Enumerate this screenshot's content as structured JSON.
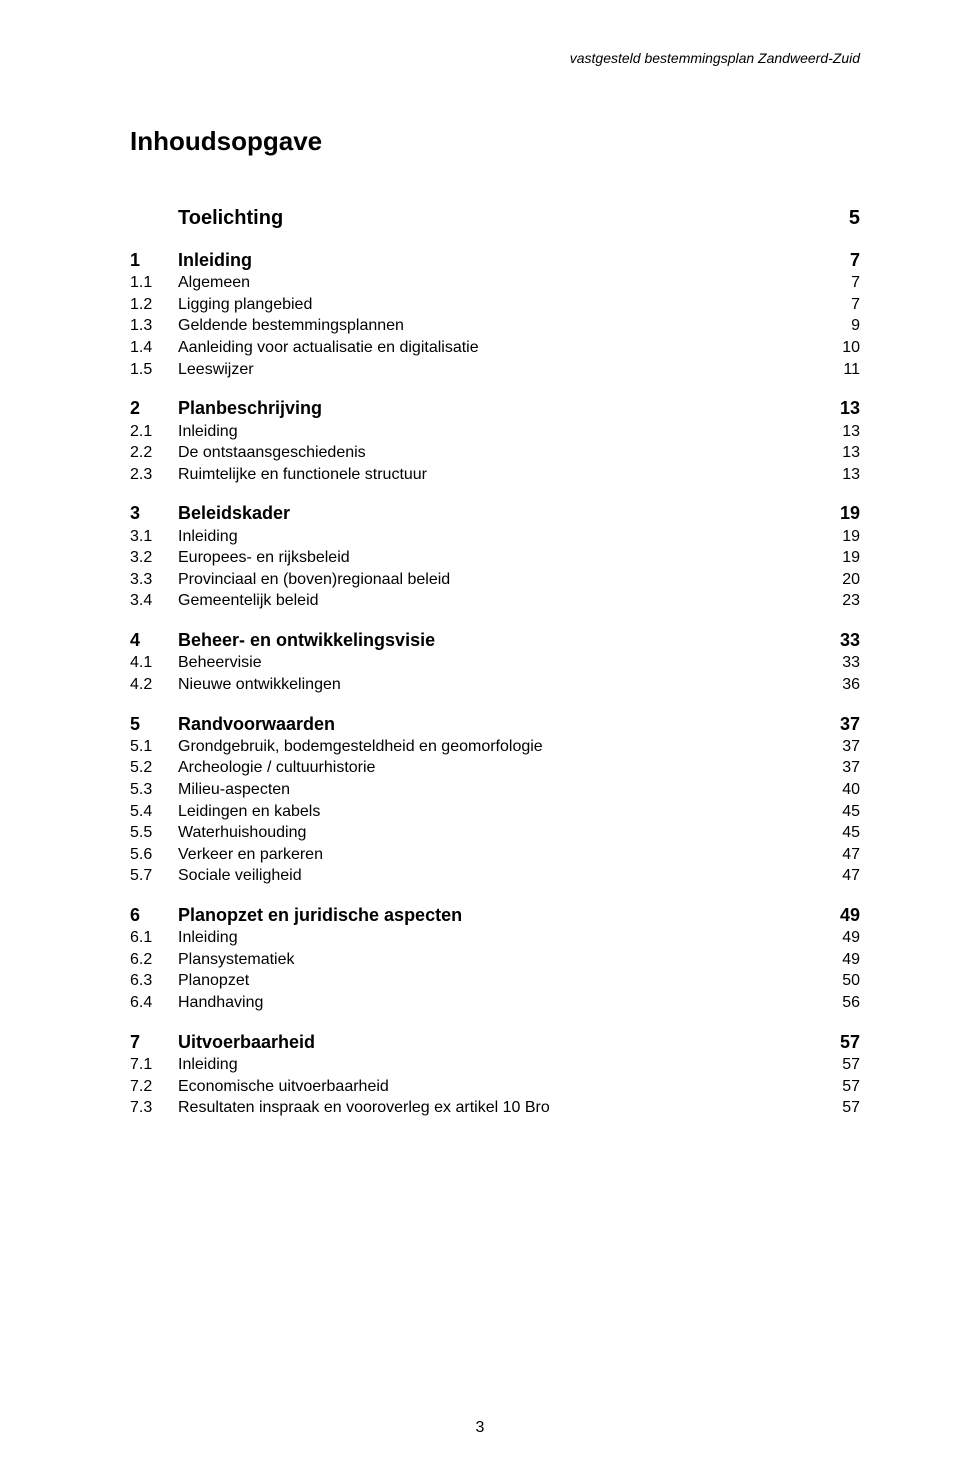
{
  "running_head": "vastgesteld bestemmingsplan Zandweerd-Zuid",
  "doc_title": "Inhoudsopgave",
  "page_number": "3",
  "toc": [
    {
      "level": 0,
      "num": "",
      "title": "Toelichting",
      "page": "5"
    },
    {
      "spacer": true
    },
    {
      "level": 1,
      "num": "1",
      "title": "Inleiding",
      "page": "7"
    },
    {
      "level": 2,
      "num": "1.1",
      "title": "Algemeen",
      "page": "7"
    },
    {
      "level": 2,
      "num": "1.2",
      "title": "Ligging plangebied",
      "page": "7"
    },
    {
      "level": 2,
      "num": "1.3",
      "title": "Geldende bestemmingsplannen",
      "page": "9"
    },
    {
      "level": 2,
      "num": "1.4",
      "title": "Aanleiding voor actualisatie en digitalisatie",
      "page": "10"
    },
    {
      "level": 2,
      "num": "1.5",
      "title": "Leeswijzer",
      "page": "11"
    },
    {
      "spacer": true
    },
    {
      "level": 1,
      "num": "2",
      "title": "Planbeschrijving",
      "page": "13"
    },
    {
      "level": 2,
      "num": "2.1",
      "title": "Inleiding",
      "page": "13"
    },
    {
      "level": 2,
      "num": "2.2",
      "title": "De ontstaansgeschiedenis",
      "page": "13"
    },
    {
      "level": 2,
      "num": "2.3",
      "title": "Ruimtelijke en functionele structuur",
      "page": "13"
    },
    {
      "spacer": true
    },
    {
      "level": 1,
      "num": "3",
      "title": "Beleidskader",
      "page": "19"
    },
    {
      "level": 2,
      "num": "3.1",
      "title": "Inleiding",
      "page": "19"
    },
    {
      "level": 2,
      "num": "3.2",
      "title": "Europees- en rijksbeleid",
      "page": "19"
    },
    {
      "level": 2,
      "num": "3.3",
      "title": "Provinciaal en (boven)regionaal beleid",
      "page": "20"
    },
    {
      "level": 2,
      "num": "3.4",
      "title": "Gemeentelijk beleid",
      "page": "23"
    },
    {
      "spacer": true
    },
    {
      "level": 1,
      "num": "4",
      "title": "Beheer- en ontwikkelingsvisie",
      "page": "33"
    },
    {
      "level": 2,
      "num": "4.1",
      "title": "Beheervisie",
      "page": "33"
    },
    {
      "level": 2,
      "num": "4.2",
      "title": "Nieuwe ontwikkelingen",
      "page": "36"
    },
    {
      "spacer": true
    },
    {
      "level": 1,
      "num": "5",
      "title": "Randvoorwaarden",
      "page": "37"
    },
    {
      "level": 2,
      "num": "5.1",
      "title": "Grondgebruik, bodemgesteldheid en geomorfologie",
      "page": "37"
    },
    {
      "level": 2,
      "num": "5.2",
      "title": "Archeologie / cultuurhistorie",
      "page": "37"
    },
    {
      "level": 2,
      "num": "5.3",
      "title": "Milieu-aspecten",
      "page": "40"
    },
    {
      "level": 2,
      "num": "5.4",
      "title": "Leidingen en kabels",
      "page": "45"
    },
    {
      "level": 2,
      "num": "5.5",
      "title": "Waterhuishouding",
      "page": "45"
    },
    {
      "level": 2,
      "num": "5.6",
      "title": "Verkeer en parkeren",
      "page": "47"
    },
    {
      "level": 2,
      "num": "5.7",
      "title": "Sociale veiligheid",
      "page": "47"
    },
    {
      "spacer": true
    },
    {
      "level": 1,
      "num": "6",
      "title": "Planopzet en juridische aspecten",
      "page": "49"
    },
    {
      "level": 2,
      "num": "6.1",
      "title": "Inleiding",
      "page": "49"
    },
    {
      "level": 2,
      "num": "6.2",
      "title": "Plansystematiek",
      "page": "49"
    },
    {
      "level": 2,
      "num": "6.3",
      "title": "Planopzet",
      "page": "50"
    },
    {
      "level": 2,
      "num": "6.4",
      "title": "Handhaving",
      "page": "56"
    },
    {
      "spacer": true
    },
    {
      "level": 1,
      "num": "7",
      "title": "Uitvoerbaarheid",
      "page": "57"
    },
    {
      "level": 2,
      "num": "7.1",
      "title": "Inleiding",
      "page": "57"
    },
    {
      "level": 2,
      "num": "7.2",
      "title": "Economische uitvoerbaarheid",
      "page": "57"
    },
    {
      "level": 2,
      "num": "7.3",
      "title": "Resultaten inspraak en vooroverleg ex artikel 10 Bro",
      "page": "57"
    }
  ]
}
